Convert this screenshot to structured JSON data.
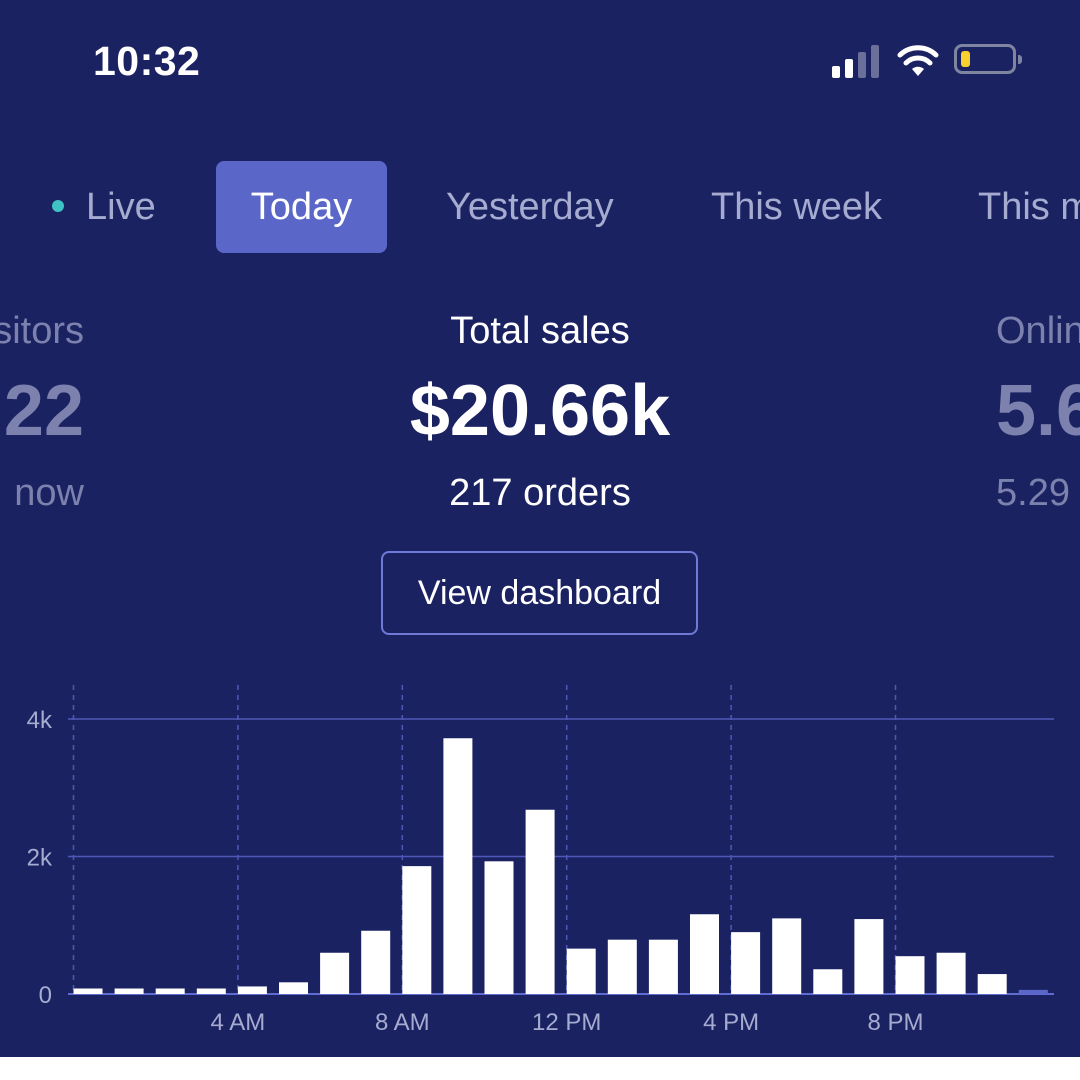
{
  "status_bar": {
    "time": "10:32",
    "signal_icon": "cellular-signal-icon",
    "wifi_icon": "wifi-icon",
    "battery_icon": "battery-icon",
    "battery_level": 0.15,
    "battery_color": "#f7d12e"
  },
  "tabs": [
    {
      "label": "Live",
      "active": false,
      "indicator_color": "#3fc2c6"
    },
    {
      "label": "Today",
      "active": true
    },
    {
      "label": "Yesterday",
      "active": false
    },
    {
      "label": "This week",
      "active": false
    },
    {
      "label": "This m",
      "active": false
    }
  ],
  "metrics": {
    "left": {
      "label": "sitors",
      "value": "22",
      "sub": "now"
    },
    "main": {
      "label": "Total sales",
      "value": "$20.66k",
      "sub": "217 orders"
    },
    "right": {
      "label": "Onlin",
      "value": "5.6",
      "sub": "5.29"
    }
  },
  "view_dashboard_label": "View dashboard",
  "colors": {
    "background": "#1b2262",
    "accent": "#5b67c8",
    "bar": "#ffffff",
    "gridline": "#4f58b8"
  },
  "chart_data": {
    "type": "bar",
    "x": [
      0,
      1,
      2,
      3,
      4,
      5,
      6,
      7,
      8,
      9,
      10,
      11,
      12,
      13,
      14,
      15,
      16,
      17,
      18,
      19,
      20,
      21,
      22,
      23
    ],
    "values": [
      80,
      80,
      80,
      80,
      110,
      170,
      600,
      920,
      1860,
      3720,
      1930,
      2680,
      660,
      790,
      790,
      1160,
      900,
      1100,
      360,
      1090,
      550,
      600,
      290,
      60
    ],
    "y_ticks": [
      "0",
      "2k",
      "4k"
    ],
    "y_tick_values": [
      0,
      2000,
      4000
    ],
    "x_ticks": [
      "4 AM",
      "8 AM",
      "12 PM",
      "4 PM",
      "8 PM"
    ],
    "x_tick_values": [
      4,
      8,
      12,
      16,
      20
    ],
    "ylim": [
      0,
      4000
    ],
    "grid": true
  }
}
